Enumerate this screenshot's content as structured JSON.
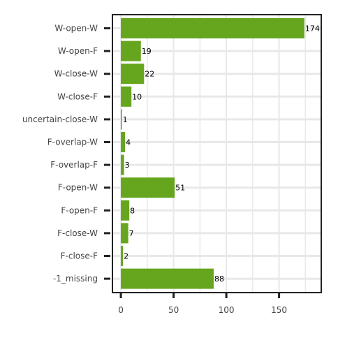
{
  "chart_data": {
    "type": "bar",
    "orientation": "horizontal",
    "categories": [
      "W-open-W",
      "W-open-F",
      "W-close-W",
      "W-close-F",
      "uncertain-close-W",
      "F-overlap-W",
      "F-overlap-F",
      "F-open-W",
      "F-open-F",
      "F-close-W",
      "F-close-F",
      "-1_missing"
    ],
    "values": [
      174,
      19,
      22,
      10,
      1,
      4,
      3,
      51,
      8,
      7,
      2,
      88
    ],
    "data_labels": [
      "174",
      "19",
      "22",
      "10",
      "1",
      "4",
      "3",
      "51",
      "8",
      "7",
      "2",
      "88"
    ],
    "title": "",
    "xlabel": "",
    "ylabel": "",
    "xlim": [
      -8,
      190
    ],
    "xticks": [
      0,
      50,
      100,
      150
    ],
    "xtick_labels": [
      "0",
      "50",
      "100",
      "150"
    ],
    "grid": true,
    "legend": "none",
    "bar_color": "#66a61e",
    "grid_color": "#e8e8e8",
    "frame_color": "#222222"
  }
}
